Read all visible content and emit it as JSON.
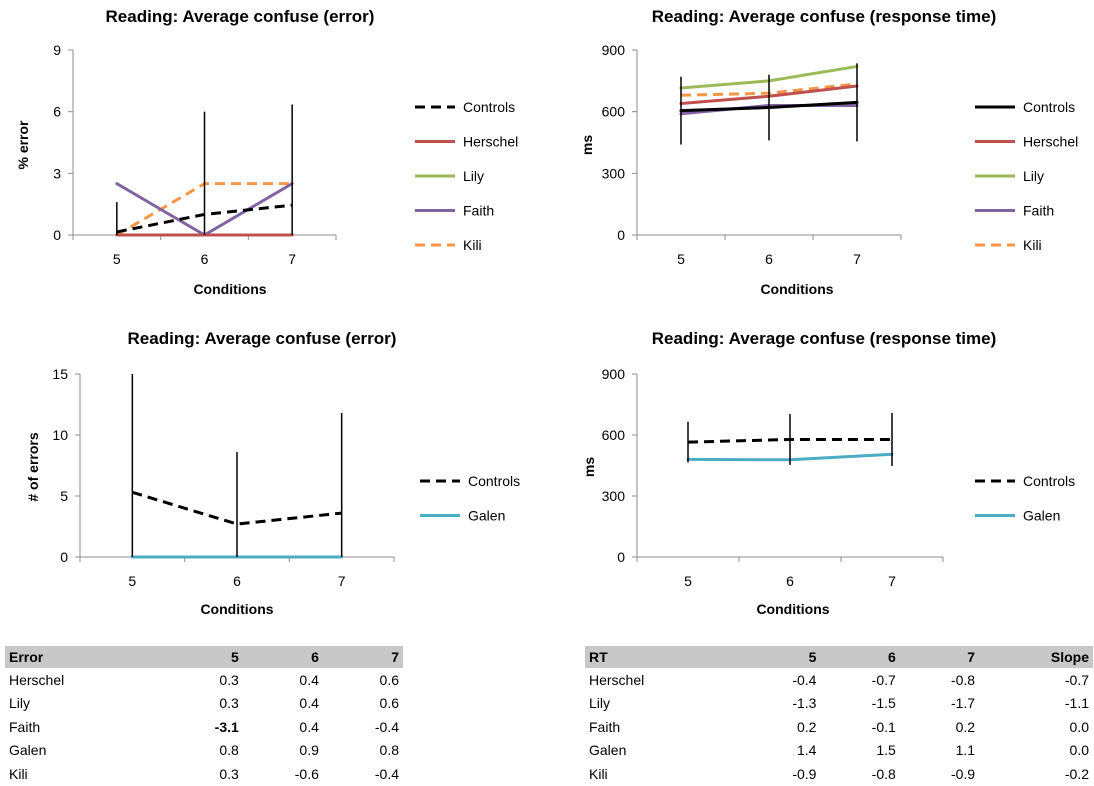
{
  "charts": [
    {
      "title": "Reading: Average confuse (error)",
      "chart_data": {
        "type": "line",
        "title": "Reading: Average confuse (error)",
        "xlabel": "Conditions",
        "ylabel": "% error",
        "categories": [
          "5",
          "6",
          "7"
        ],
        "ylim": [
          0,
          9
        ],
        "yticks": [
          "0",
          "3",
          "6",
          "9"
        ],
        "series": [
          {
            "name": "Controls",
            "values": [
              0.15,
              1.0,
              1.45
            ],
            "color": "#000000",
            "dashed": true,
            "error": [
              1.45,
              5.0,
              4.9
            ]
          },
          {
            "name": "Herschel",
            "values": [
              0,
              0,
              0
            ],
            "color": "#c0504d",
            "dashed": false
          },
          {
            "name": "Lily",
            "values": [
              0,
              0,
              0
            ],
            "color": "#9bbb59",
            "dashed": false
          },
          {
            "name": "Faith",
            "values": [
              2.5,
              0,
              2.5
            ],
            "color": "#8064a2",
            "dashed": false
          },
          {
            "name": "Kili",
            "values": [
              0,
              2.5,
              2.5
            ],
            "color": "#f79646",
            "dashed": true
          }
        ]
      }
    },
    {
      "title": "Reading: Average confuse (response time)",
      "chart_data": {
        "type": "line",
        "title": "Reading: Average confuse (response time)",
        "xlabel": "Conditions",
        "ylabel": "ms",
        "categories": [
          "5",
          "6",
          "7"
        ],
        "ylim": [
          0,
          900
        ],
        "yticks": [
          "0",
          "300",
          "600",
          "900"
        ],
        "series": [
          {
            "name": "Controls",
            "values": [
              605,
              620,
              645
            ],
            "color": "#000000",
            "dashed": false,
            "error": [
              165,
              160,
              190
            ]
          },
          {
            "name": "Herschel",
            "values": [
              640,
              675,
              725
            ],
            "color": "#c0504d",
            "dashed": false
          },
          {
            "name": "Lily",
            "values": [
              715,
              750,
              820
            ],
            "color": "#9bbb59",
            "dashed": false
          },
          {
            "name": "Faith",
            "values": [
              590,
              630,
              630
            ],
            "color": "#8064a2",
            "dashed": false
          },
          {
            "name": "Kili",
            "values": [
              680,
              690,
              735
            ],
            "color": "#f79646",
            "dashed": true
          }
        ]
      }
    },
    {
      "title": "Reading: Average confuse (error)",
      "chart_data": {
        "type": "line",
        "title": "Reading: Average confuse (error)",
        "xlabel": "Conditions",
        "ylabel": "# of errors",
        "categories": [
          "5",
          "6",
          "7"
        ],
        "ylim": [
          0,
          15
        ],
        "yticks": [
          "0",
          "5",
          "10",
          "15"
        ],
        "series": [
          {
            "name": "Controls",
            "values": [
              5.3,
              2.7,
              3.6
            ],
            "color": "#000000",
            "dashed": true,
            "error": [
              9.7,
              5.9,
              8.2
            ]
          },
          {
            "name": "Galen",
            "values": [
              0,
              0,
              0
            ],
            "color": "#4bacc6",
            "dashed": false
          }
        ]
      }
    },
    {
      "title": "Reading: Average confuse (response time)",
      "chart_data": {
        "type": "line",
        "title": "Reading: Average confuse (response time)",
        "xlabel": "Conditions",
        "ylabel": "ms",
        "categories": [
          "5",
          "6",
          "7"
        ],
        "ylim": [
          0,
          900
        ],
        "yticks": [
          "0",
          "300",
          "600",
          "900"
        ],
        "series": [
          {
            "name": "Controls",
            "values": [
              565,
              578,
              578
            ],
            "color": "#000000",
            "dashed": true,
            "error": [
              100,
              125,
              130
            ]
          },
          {
            "name": "Galen",
            "values": [
              480,
              478,
              505
            ],
            "color": "#4bacc6",
            "dashed": false
          }
        ]
      }
    }
  ],
  "tables": [
    {
      "headers": [
        "Error",
        "5",
        "6",
        "7"
      ],
      "rows": [
        {
          "cells": [
            "Herschel",
            "0.3",
            "0.4",
            "0.6"
          ]
        },
        {
          "cells": [
            "Lily",
            "0.3",
            "0.4",
            "0.6"
          ]
        },
        {
          "cells": [
            "Faith",
            "-3.1",
            "0.4",
            "-0.4"
          ],
          "bold": [
            1
          ]
        },
        {
          "cells": [
            "Galen",
            "0.8",
            "0.9",
            "0.8"
          ]
        },
        {
          "cells": [
            "Kili",
            "0.3",
            "-0.6",
            "-0.4"
          ]
        }
      ]
    },
    {
      "headers": [
        "RT",
        "5",
        "6",
        "7",
        "Slope"
      ],
      "rows": [
        {
          "cells": [
            "Herschel",
            "-0.4",
            "-0.7",
            "-0.8",
            "-0.7"
          ]
        },
        {
          "cells": [
            "Lily",
            "-1.3",
            "-1.5",
            "-1.7",
            "-1.1"
          ]
        },
        {
          "cells": [
            "Faith",
            "0.2",
            "-0.1",
            "0.2",
            "0.0"
          ]
        },
        {
          "cells": [
            "Galen",
            "1.4",
            "1.5",
            "1.1",
            "0.0"
          ]
        },
        {
          "cells": [
            "Kili",
            "-0.9",
            "-0.8",
            "-0.9",
            "-0.2"
          ]
        }
      ]
    }
  ]
}
